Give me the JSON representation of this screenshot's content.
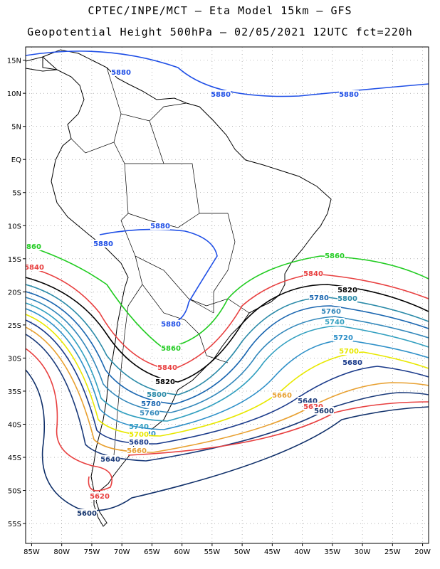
{
  "title_line1": "CPTEC/INPE/MCT –  Eta Model 15km – GFS",
  "title_line2": "Geopotential Height 500hPa – 02/05/2021 12UTC fct=220h",
  "lat_ticks": [
    "15N",
    "10N",
    "5N",
    "EQ",
    "5S",
    "10S",
    "15S",
    "20S",
    "25S",
    "30S",
    "35S",
    "40S",
    "45S",
    "50S",
    "55S"
  ],
  "lon_ticks": [
    "85W",
    "80W",
    "75W",
    "70W",
    "65W",
    "60W",
    "55W",
    "50W",
    "45W",
    "40W",
    "35W",
    "30W",
    "25W",
    "20W"
  ],
  "contours": [
    {
      "value": 5880,
      "label": "5880",
      "color": "#1f4fe6"
    },
    {
      "value": 5860,
      "label": "5860",
      "color": "#22cc22"
    },
    {
      "value": 5840,
      "label": "5840",
      "color": "#e84040"
    },
    {
      "value": 5820,
      "label": "5820",
      "color": "#000000"
    },
    {
      "value": 5800,
      "label": "5800",
      "color": "#2a8aa8"
    },
    {
      "value": 5780,
      "label": "5780",
      "color": "#1a66b0"
    },
    {
      "value": 5760,
      "label": "5760",
      "color": "#3388bb"
    },
    {
      "value": 5740,
      "label": "5740",
      "color": "#33a0c0"
    },
    {
      "value": 5720,
      "label": "5720",
      "color": "#2e90c8"
    },
    {
      "value": 5700,
      "label": "5700",
      "color": "#e8e800"
    },
    {
      "value": 5680,
      "label": "5680",
      "color": "#1a3a8a"
    },
    {
      "value": 5660,
      "label": "5660",
      "color": "#e8a030"
    },
    {
      "value": 5640,
      "label": "5640",
      "color": "#1a3a7a"
    },
    {
      "value": 5620,
      "label": "5620",
      "color": "#e84040"
    },
    {
      "value": 5600,
      "label": "5600",
      "color": "#10306a"
    }
  ]
}
